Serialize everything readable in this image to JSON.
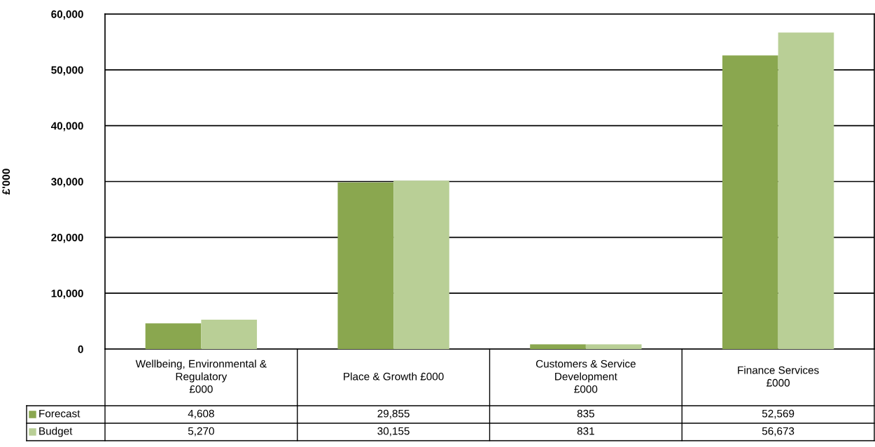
{
  "chart_data": {
    "type": "bar",
    "ylabel": "£'000",
    "categories": [
      "Wellbeing, Environmental &\nRegulatory\n£000",
      "Place & Growth £000",
      "Customers & Service\nDevelopment\n£000",
      "Finance Services\n£000"
    ],
    "series": [
      {
        "name": "Forecast",
        "color": "#8aa74f",
        "values": [
          4608,
          29855,
          835,
          52569
        ],
        "value_labels": [
          "4,608",
          "29,855",
          "835",
          "52,569"
        ]
      },
      {
        "name": "Budget",
        "color": "#b9cf96",
        "values": [
          5270,
          30155,
          831,
          56673
        ],
        "value_labels": [
          "5,270",
          "30,155",
          "831",
          "56,673"
        ]
      }
    ],
    "ylim": [
      0,
      60000
    ],
    "yticks": [
      {
        "value": 0,
        "label": "0"
      },
      {
        "value": 10000,
        "label": "10,000"
      },
      {
        "value": 20000,
        "label": "20,000"
      },
      {
        "value": 30000,
        "label": "30,000"
      },
      {
        "value": 40000,
        "label": "40,000"
      },
      {
        "value": 50000,
        "label": "50,000"
      },
      {
        "value": 60000,
        "label": "60,000"
      }
    ],
    "grid": "y",
    "legend": "bottom left"
  }
}
